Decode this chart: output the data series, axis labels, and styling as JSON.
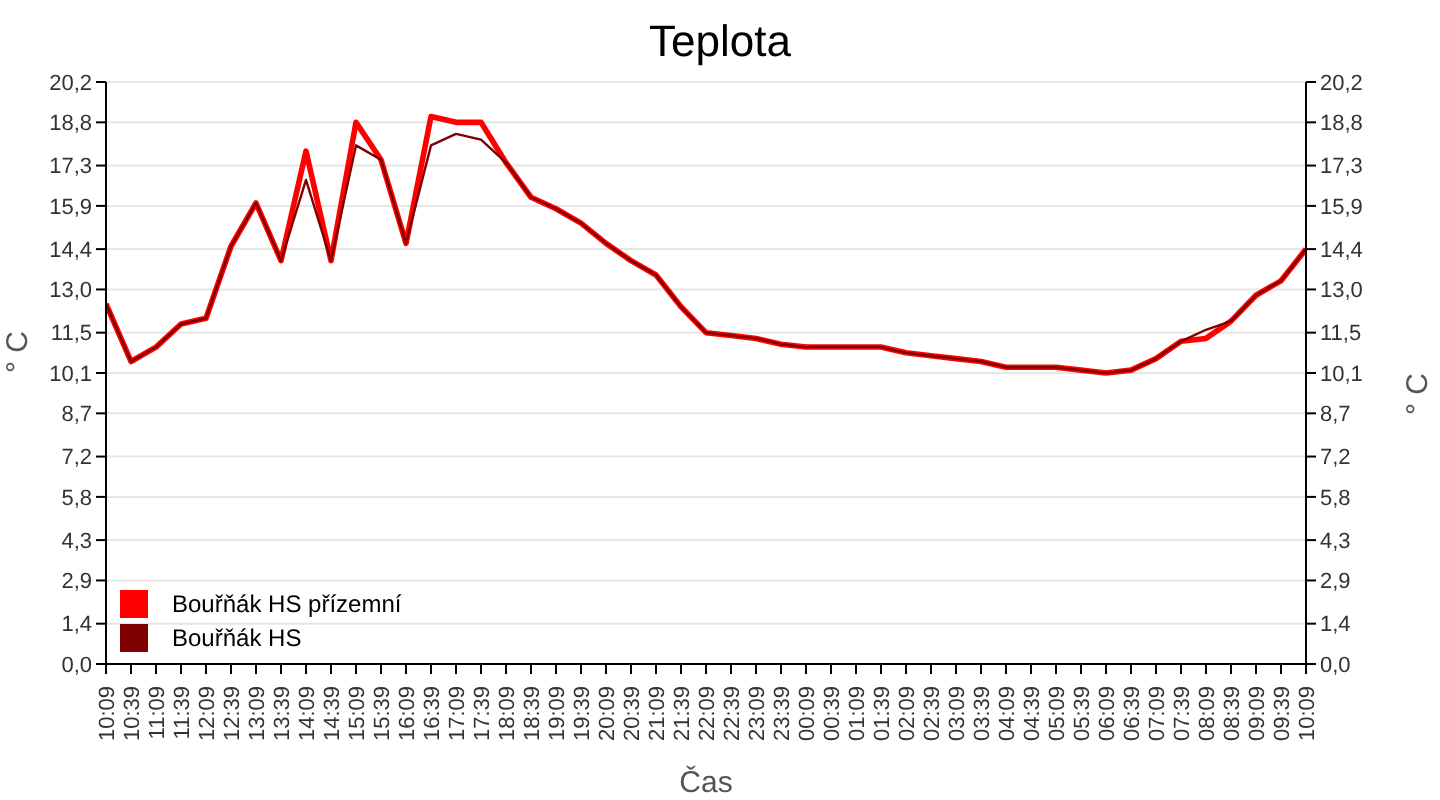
{
  "chart_data": {
    "type": "line",
    "title": "Teplota",
    "xlabel": "Čas",
    "ylabel": "° C",
    "y2label": "° C",
    "categories": [
      "10:09",
      "10:39",
      "11:09",
      "11:39",
      "12:09",
      "12:39",
      "13:09",
      "13:39",
      "14:09",
      "14:39",
      "15:09",
      "15:39",
      "16:09",
      "16:39",
      "17:09",
      "17:39",
      "18:09",
      "18:39",
      "19:09",
      "19:39",
      "20:09",
      "20:39",
      "21:09",
      "21:39",
      "22:09",
      "22:39",
      "23:09",
      "23:39",
      "00:09",
      "00:39",
      "01:09",
      "01:39",
      "02:09",
      "02:39",
      "03:09",
      "03:39",
      "04:09",
      "04:39",
      "05:09",
      "05:39",
      "06:09",
      "06:39",
      "07:09",
      "07:39",
      "08:09",
      "08:39",
      "09:09",
      "09:39",
      "10:09"
    ],
    "series": [
      {
        "name": "Bouřňák HS přízemní",
        "color": "#ff0000",
        "values": [
          12.5,
          10.5,
          11.0,
          11.8,
          12.0,
          14.5,
          16.0,
          14.0,
          17.8,
          14.0,
          18.8,
          17.5,
          14.6,
          19.0,
          18.8,
          18.8,
          17.4,
          16.2,
          15.8,
          15.3,
          14.6,
          14.0,
          13.5,
          12.4,
          11.5,
          11.4,
          11.3,
          11.1,
          11.0,
          11.0,
          11.0,
          11.0,
          10.8,
          10.7,
          10.6,
          10.5,
          10.3,
          10.3,
          10.3,
          10.2,
          10.1,
          10.2,
          10.6,
          11.2,
          11.3,
          11.9,
          12.8,
          13.3,
          14.4
        ]
      },
      {
        "name": "Bouřňák HS",
        "color": "#800000",
        "values": [
          12.5,
          10.5,
          11.0,
          11.8,
          12.0,
          14.5,
          16.0,
          14.0,
          16.8,
          14.0,
          18.0,
          17.5,
          14.6,
          18.0,
          18.4,
          18.2,
          17.4,
          16.2,
          15.8,
          15.3,
          14.6,
          14.0,
          13.5,
          12.4,
          11.5,
          11.4,
          11.3,
          11.1,
          11.0,
          11.0,
          11.0,
          11.0,
          10.8,
          10.7,
          10.6,
          10.5,
          10.3,
          10.3,
          10.3,
          10.2,
          10.1,
          10.2,
          10.6,
          11.2,
          11.6,
          11.9,
          12.8,
          13.3,
          14.4
        ]
      }
    ],
    "ylim": [
      0,
      20.2
    ],
    "yticks": [
      {
        "value": 0,
        "label": "0,0"
      },
      {
        "value": 1.4,
        "label": "1,4"
      },
      {
        "value": 2.9,
        "label": "2,9"
      },
      {
        "value": 4.3,
        "label": "4,3"
      },
      {
        "value": 5.8,
        "label": "5,8"
      },
      {
        "value": 7.2,
        "label": "7,2"
      },
      {
        "value": 8.7,
        "label": "8,7"
      },
      {
        "value": 10.1,
        "label": "10,1"
      },
      {
        "value": 11.5,
        "label": "11,5"
      },
      {
        "value": 13.0,
        "label": "13,0"
      },
      {
        "value": 14.4,
        "label": "14,4"
      },
      {
        "value": 15.9,
        "label": "15,9"
      },
      {
        "value": 17.3,
        "label": "17,3"
      },
      {
        "value": 18.8,
        "label": "18,8"
      },
      {
        "value": 20.2,
        "label": "20,2"
      }
    ],
    "y2lim": [
      0,
      20.2
    ],
    "y2ticks": [
      {
        "value": 0,
        "label": "0,0"
      },
      {
        "value": 1.4,
        "label": "1,4"
      },
      {
        "value": 2.9,
        "label": "2,9"
      },
      {
        "value": 4.3,
        "label": "4,3"
      },
      {
        "value": 5.8,
        "label": "5,8"
      },
      {
        "value": 7.2,
        "label": "7,2"
      },
      {
        "value": 8.7,
        "label": "8,7"
      },
      {
        "value": 10.1,
        "label": "10,1"
      },
      {
        "value": 11.5,
        "label": "11,5"
      },
      {
        "value": 13.0,
        "label": "13,0"
      },
      {
        "value": 14.4,
        "label": "14,4"
      },
      {
        "value": 15.9,
        "label": "15,9"
      },
      {
        "value": 17.3,
        "label": "17,3"
      },
      {
        "value": 18.8,
        "label": "18,8"
      },
      {
        "value": 20.2,
        "label": "20,2"
      }
    ],
    "grid": "y",
    "legend": "bottom left",
    "marker": "none",
    "line_style": "solid"
  }
}
